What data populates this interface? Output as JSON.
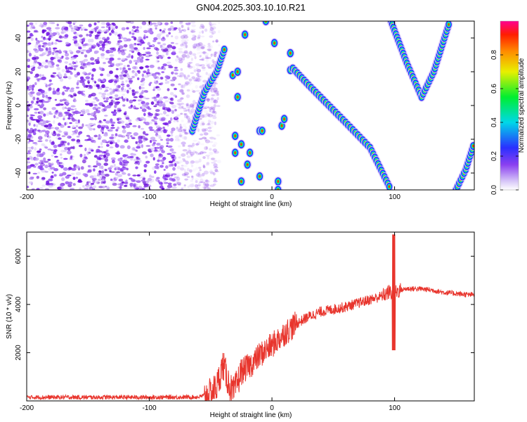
{
  "title": "GN04.2025.303.10.10.R21",
  "chart_data": [
    {
      "type": "heatmap",
      "xlabel": "Height of straight line (km)",
      "ylabel": "Frequency (Hz)",
      "xlim": [
        -200,
        165
      ],
      "ylim": [
        -50,
        50
      ],
      "xticks": [
        -200,
        -100,
        0,
        100
      ],
      "yticks": [
        -40,
        -20,
        0,
        20,
        40
      ],
      "colorbar": {
        "label": "Normalized spectral amplitude",
        "range": [
          0,
          1
        ],
        "ticks": [
          "0.0",
          "0.2",
          "0.4",
          "0.6",
          "0.8"
        ]
      },
      "noise_region": {
        "x": [
          -200,
          -58
        ]
      },
      "tracks": [
        {
          "name": "descending-line",
          "points": [
            [
              17,
              22
            ],
            [
              30,
              12
            ],
            [
              60,
              -10
            ],
            [
              80,
              -25
            ],
            [
              97,
              -50
            ]
          ]
        },
        {
          "name": "v-shape",
          "points": [
            [
              97,
              50
            ],
            [
              110,
              25
            ],
            [
              122,
              5
            ],
            [
              132,
              20
            ],
            [
              145,
              50
            ]
          ]
        },
        {
          "name": "right-edge",
          "points": [
            [
              150,
              -50
            ],
            [
              158,
              -38
            ],
            [
              165,
              -22
            ]
          ]
        },
        {
          "name": "diagonal-left",
          "points": [
            [
              -65,
              -15
            ],
            [
              -55,
              8
            ],
            [
              -45,
              20
            ],
            [
              -38,
              35
            ]
          ]
        }
      ],
      "clusters": [
        [
          -28,
          5
        ],
        [
          -30,
          -18
        ],
        [
          -25,
          -23
        ],
        [
          -20,
          -35
        ],
        [
          -18,
          -28
        ],
        [
          -10,
          -15
        ],
        [
          -8,
          -15
        ],
        [
          -25,
          -45
        ],
        [
          -10,
          -42
        ],
        [
          2,
          37
        ],
        [
          8,
          -12
        ],
        [
          10,
          -8
        ],
        [
          15,
          31
        ],
        [
          15,
          21
        ],
        [
          -5,
          50
        ],
        [
          5,
          -45
        ],
        [
          5,
          -50
        ],
        [
          -30,
          -28
        ],
        [
          -22,
          42
        ],
        [
          -32,
          18
        ],
        [
          -28,
          20
        ]
      ]
    },
    {
      "type": "line",
      "xlabel": "Height of straight line (km)",
      "ylabel": "SNR (10 * v/v)",
      "xlim": [
        -200,
        165
      ],
      "ylim": [
        0,
        7000
      ],
      "xticks": [
        -200,
        -100,
        0,
        100
      ],
      "yticks": [
        2000,
        4000,
        6000
      ],
      "line_color": "#e8352d",
      "series": [
        {
          "x": [
            -200,
            -150,
            -100,
            -60,
            -50,
            -45,
            -40,
            -35,
            -32,
            -30,
            -25,
            -20,
            -15,
            -10,
            0,
            10,
            20,
            30,
            40,
            50,
            60,
            70,
            80,
            90,
            95,
            98,
            100,
            102,
            105,
            110,
            120,
            130,
            140,
            150,
            160,
            165
          ],
          "y": [
            150,
            150,
            150,
            160,
            300,
            600,
            1500,
            700,
            300,
            500,
            1200,
            1400,
            1600,
            1900,
            2300,
            2800,
            3200,
            3500,
            3700,
            3800,
            3900,
            4050,
            4200,
            4350,
            4500,
            4500,
            4500,
            4550,
            4600,
            4650,
            4650,
            4600,
            4500,
            4450,
            4400,
            4400
          ]
        }
      ]
    }
  ]
}
